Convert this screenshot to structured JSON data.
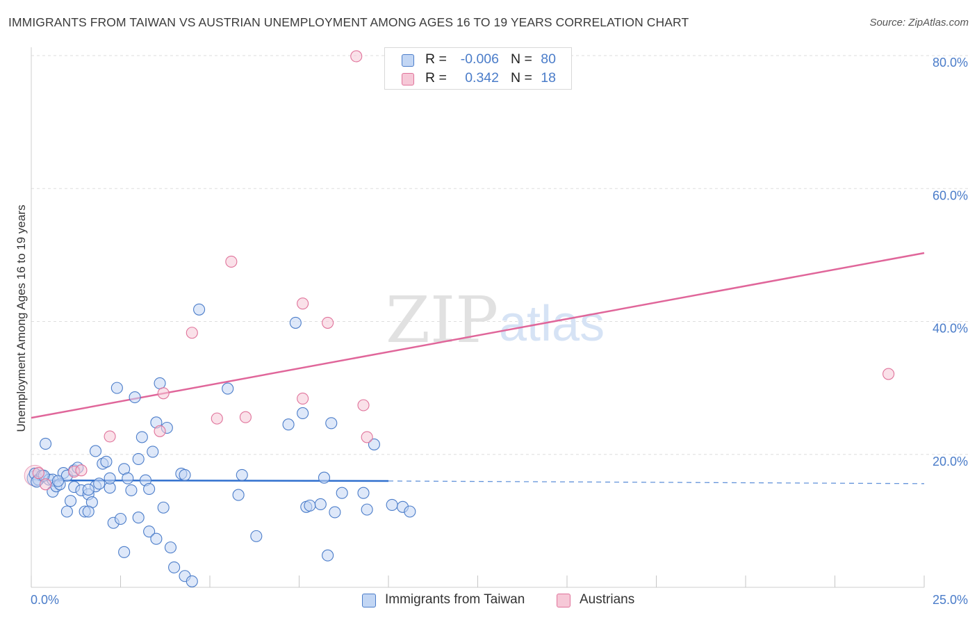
{
  "title": "IMMIGRANTS FROM TAIWAN VS AUSTRIAN UNEMPLOYMENT AMONG AGES 16 TO 19 YEARS CORRELATION CHART",
  "source": "Source: ZipAtlas.com",
  "watermark": {
    "zip": "ZIP",
    "atlas": "atlas"
  },
  "colors": {
    "blue": "#4a7cc9",
    "blue_fill": "#c2d6f4",
    "blue_line": "#2f6fce",
    "pink": "#e0729a",
    "pink_fill": "#f6c8d7",
    "pink_line": "#e0669a"
  },
  "legend_top": {
    "rows": [
      {
        "r_label": "R =",
        "r_value": "-0.006",
        "n_label": "N =",
        "n_value": "80",
        "series": "blue"
      },
      {
        "r_label": "R =",
        "r_value": "0.342",
        "n_label": "N =",
        "n_value": "18",
        "series": "pink"
      }
    ]
  },
  "legend_bottom": {
    "items": [
      {
        "label": "Immigrants from Taiwan",
        "series": "blue"
      },
      {
        "label": "Austrians",
        "series": "pink"
      }
    ]
  },
  "chart_data": {
    "type": "scatter",
    "title": "IMMIGRANTS FROM TAIWAN VS AUSTRIAN UNEMPLOYMENT AMONG AGES 16 TO 19 YEARS CORRELATION CHART",
    "xlabel": "",
    "ylabel": "Unemployment Among Ages 16 to 19 years",
    "xlim": [
      0,
      25
    ],
    "ylim": [
      0,
      80
    ],
    "x_tick_labels": [
      {
        "value": 0,
        "label": "0.0%"
      },
      {
        "value": 25,
        "label": "25.0%"
      }
    ],
    "y_tick_labels": [
      {
        "value": 20,
        "label": "20.0%"
      },
      {
        "value": 40,
        "label": "40.0%"
      },
      {
        "value": 60,
        "label": "60.0%"
      },
      {
        "value": 80,
        "label": "80.0%"
      }
    ],
    "series": [
      {
        "name": "Immigrants from Taiwan",
        "color": "blue",
        "r": -0.006,
        "n": 80,
        "trend": {
          "x0": 0,
          "y0": 16.1,
          "x1": 10,
          "y1": 16.0,
          "dash_to_x": 25,
          "dash_y": 15.6
        },
        "points": [
          [
            0.1,
            17.1
          ],
          [
            0.2,
            16.2
          ],
          [
            0.3,
            16.8
          ],
          [
            0.4,
            21.6
          ],
          [
            0.5,
            16.2
          ],
          [
            0.6,
            14.4
          ],
          [
            0.6,
            16.2
          ],
          [
            0.7,
            15.2
          ],
          [
            0.8,
            15.5
          ],
          [
            0.9,
            17.2
          ],
          [
            1.0,
            16.8
          ],
          [
            1.0,
            11.4
          ],
          [
            1.1,
            13.0
          ],
          [
            1.2,
            15.1
          ],
          [
            1.2,
            17.6
          ],
          [
            1.3,
            18.0
          ],
          [
            1.4,
            14.6
          ],
          [
            1.5,
            11.4
          ],
          [
            1.6,
            14.0
          ],
          [
            1.7,
            12.8
          ],
          [
            1.8,
            15.2
          ],
          [
            1.6,
            11.4
          ],
          [
            1.6,
            14.7
          ],
          [
            1.8,
            20.5
          ],
          [
            1.9,
            15.6
          ],
          [
            2.0,
            18.6
          ],
          [
            2.1,
            18.9
          ],
          [
            2.2,
            15.0
          ],
          [
            2.2,
            16.4
          ],
          [
            2.3,
            9.7
          ],
          [
            2.4,
            30.0
          ],
          [
            2.5,
            10.3
          ],
          [
            2.6,
            5.3
          ],
          [
            2.6,
            17.8
          ],
          [
            2.7,
            16.4
          ],
          [
            2.8,
            14.6
          ],
          [
            2.9,
            28.6
          ],
          [
            3.0,
            10.5
          ],
          [
            3.0,
            19.3
          ],
          [
            3.1,
            22.6
          ],
          [
            3.2,
            16.1
          ],
          [
            3.3,
            8.4
          ],
          [
            3.3,
            14.8
          ],
          [
            3.4,
            20.4
          ],
          [
            3.5,
            7.3
          ],
          [
            3.5,
            24.8
          ],
          [
            3.6,
            30.7
          ],
          [
            3.7,
            12.0
          ],
          [
            3.8,
            24.0
          ],
          [
            3.9,
            6.0
          ],
          [
            4.0,
            3.0
          ],
          [
            4.2,
            17.1
          ],
          [
            4.3,
            16.9
          ],
          [
            4.3,
            1.7
          ],
          [
            4.5,
            0.9
          ],
          [
            4.7,
            41.8
          ],
          [
            5.5,
            29.9
          ],
          [
            5.8,
            13.9
          ],
          [
            5.9,
            16.9
          ],
          [
            6.3,
            7.7
          ],
          [
            7.2,
            24.5
          ],
          [
            7.4,
            39.8
          ],
          [
            7.6,
            26.2
          ],
          [
            7.7,
            12.1
          ],
          [
            7.8,
            12.3
          ],
          [
            8.1,
            12.5
          ],
          [
            8.2,
            16.5
          ],
          [
            8.3,
            4.8
          ],
          [
            8.4,
            24.7
          ],
          [
            8.5,
            11.3
          ],
          [
            8.7,
            14.2
          ],
          [
            9.3,
            14.2
          ],
          [
            9.4,
            11.7
          ],
          [
            9.6,
            21.5
          ],
          [
            10.1,
            12.4
          ],
          [
            10.4,
            12.1
          ],
          [
            10.6,
            11.4
          ],
          [
            0.15,
            15.9
          ],
          [
            0.35,
            16.8
          ],
          [
            0.75,
            16.0
          ]
        ]
      },
      {
        "name": "Austrians",
        "color": "pink",
        "r": 0.342,
        "n": 18,
        "trend": {
          "x0": 0,
          "y0": 25.5,
          "x1": 25,
          "y1": 50.3
        },
        "points": [
          [
            0.2,
            17.2
          ],
          [
            0.4,
            15.5
          ],
          [
            1.2,
            17.4
          ],
          [
            2.2,
            22.7
          ],
          [
            3.6,
            23.5
          ],
          [
            3.7,
            29.2
          ],
          [
            4.5,
            38.3
          ],
          [
            5.2,
            25.4
          ],
          [
            5.6,
            49.0
          ],
          [
            6.0,
            25.6
          ],
          [
            7.6,
            42.7
          ],
          [
            7.6,
            28.4
          ],
          [
            8.3,
            39.8
          ],
          [
            9.3,
            27.4
          ],
          [
            9.4,
            22.6
          ],
          [
            9.1,
            79.9
          ],
          [
            24.0,
            32.1
          ],
          [
            1.4,
            17.6
          ]
        ]
      }
    ]
  }
}
